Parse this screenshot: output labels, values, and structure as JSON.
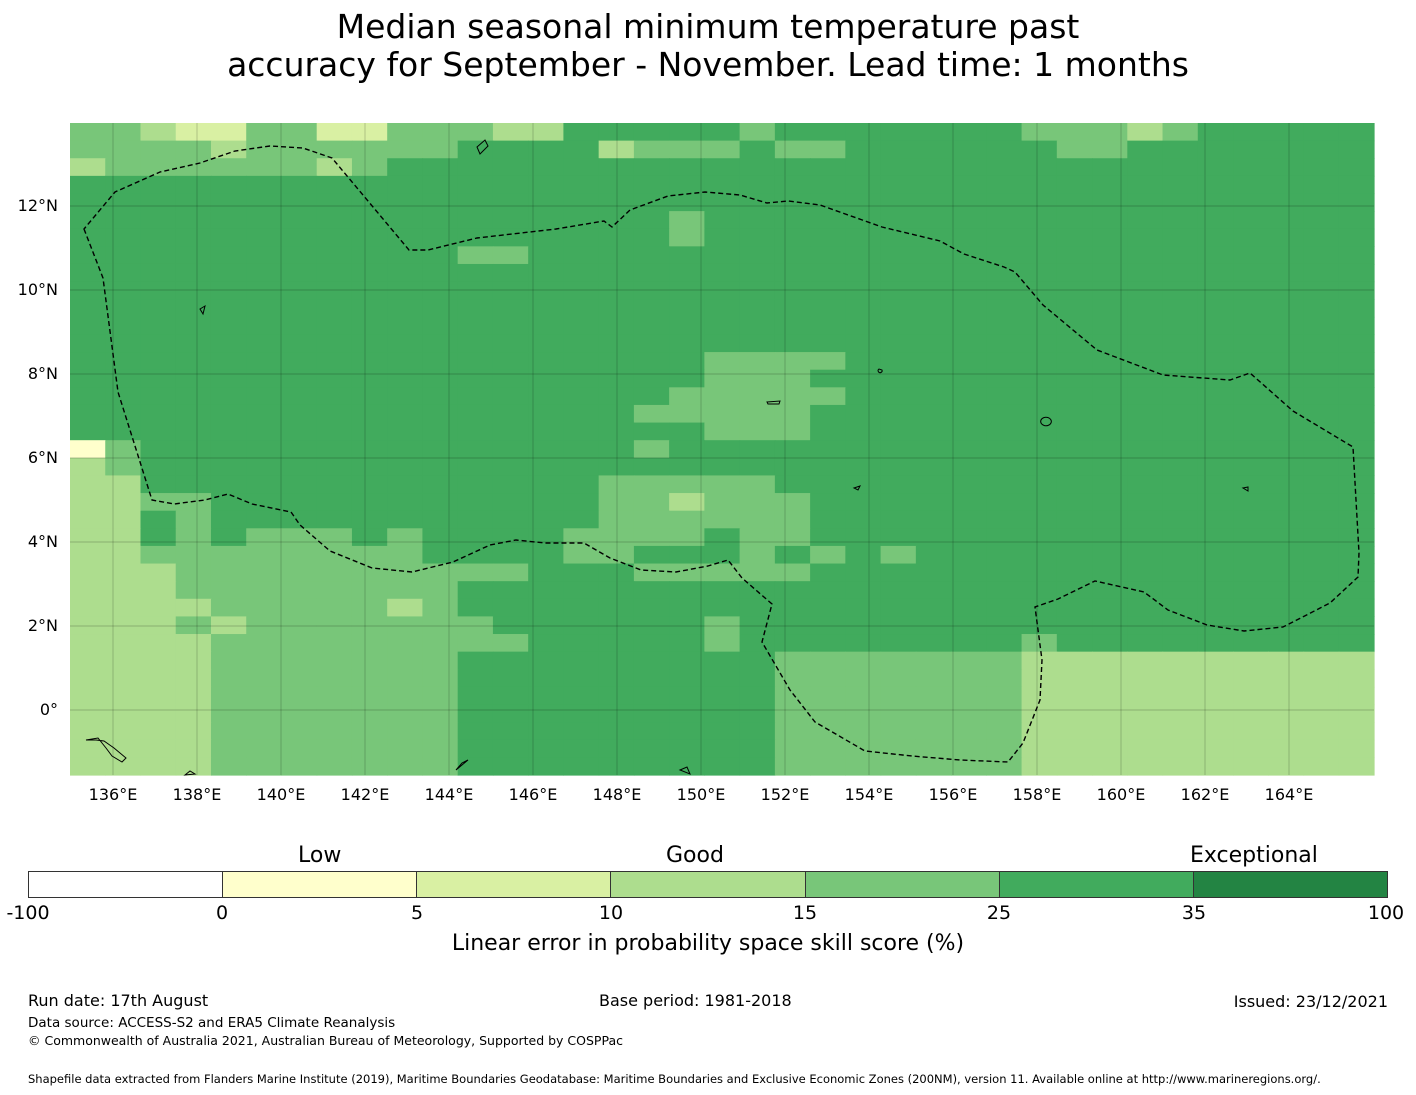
{
  "title": {
    "line1": "Median seasonal minimum temperature past",
    "line2": "accuracy for September - November. Lead time: 1 months"
  },
  "map": {
    "lat_labels": [
      "12°N",
      "10°N",
      "8°N",
      "6°N",
      "4°N",
      "2°N",
      "0°"
    ],
    "lon_labels": [
      "136°E",
      "138°E",
      "140°E",
      "142°E",
      "144°E",
      "146°E",
      "148°E",
      "150°E",
      "152°E",
      "154°E",
      "156°E",
      "158°E",
      "160°E",
      "162°E",
      "164°E"
    ],
    "grid_rows": [
      "4432244224443355555455555554443455555",
      "4444344444455553444544555555445555555",
      "3444444345555555555555555555555555555",
      "5555555555555555555555555555555555555",
      "5555555555555555555555555555555555555",
      "5555555555555555545555555555555555555",
      "5555555555555555545555555555555555555",
      "5555555555544555555555555555555555555",
      "5555555555555555555555555555555555555",
      "5555555555555555555555555555555555555",
      "5555555555555555555555555555555555555",
      "5555555555555555555555555555555555555",
      "5555555555555555555555555555555555555",
      "5555555555555555554444555555555555555",
      "5555555555555555554445555555555555555",
      "5555555555555555544444555555555555555",
      "5555555555555555444445555555555555555",
      "5555555555555555554445555555555555555",
      "1455555555555555455555555555555555555",
      "3455555555555555555555555555555555555",
      "3355555555555554444455555555555555555",
      "3344555555555554434445555555555555555",
      "3354555555555554444445555555555555555",
      "3354544454555544445445555555555555555",
      "3344444444555544555454545555555555555",
      "3334444444444555444445555555555555555",
      "3334444444455555555555555555555555555",
      "3333444443455555555555555555555555555",
      "3334344444445555554555555555555555555",
      "3333444444444555554555555554555555555",
      "3333444444455555555544444443333333333",
      "3333444444455555555544444443333333333",
      "3333444444455555555544444443333333333",
      "3333444444455555555544444443333333333",
      "3333444444455555555544444443333333333",
      "3333444444455555555544444443333333333",
      "3333444444455555555544444443333333333"
    ],
    "grid_note": "",
    "colors": {
      "0": "#ffffff",
      "1": "#ffffcc",
      "2": "#d9f0a3",
      "3": "#addd8e",
      "4": "#78c679",
      "5": "#41ab5d",
      "6": "#238443"
    }
  },
  "legend": {
    "category_low": "Low",
    "category_good": "Good",
    "category_exceptional": "Exceptional",
    "bins": [
      {
        "color": "#ffffff"
      },
      {
        "color": "#ffffcc"
      },
      {
        "color": "#d9f0a3"
      },
      {
        "color": "#addd8e"
      },
      {
        "color": "#78c679"
      },
      {
        "color": "#41ab5d"
      },
      {
        "color": "#238443"
      }
    ],
    "ticks": [
      "-100",
      "0",
      "5",
      "10",
      "15",
      "25",
      "35",
      "100"
    ],
    "axis_label": "Linear error in probability space skill score (%)"
  },
  "footer": {
    "run_date": "Run date: 17th August",
    "base_period": "Base period: 1981-2018",
    "issued": "Issued: 23/12/2021",
    "data_source": "Data source: ACCESS-S2 and ERA5 Climate Reanalysis",
    "copyright": "© Commonwealth of Australia 2021, Australian Bureau of Meteorology, Supported by COSPPac",
    "shapefile": "Shapefile data extracted from Flanders Marine Institute (2019), Maritime Boundaries Geodatabase: Maritime Boundaries and Exclusive Economic Zones (200NM), version 11. Available online at http://www.marineregions.org/."
  }
}
